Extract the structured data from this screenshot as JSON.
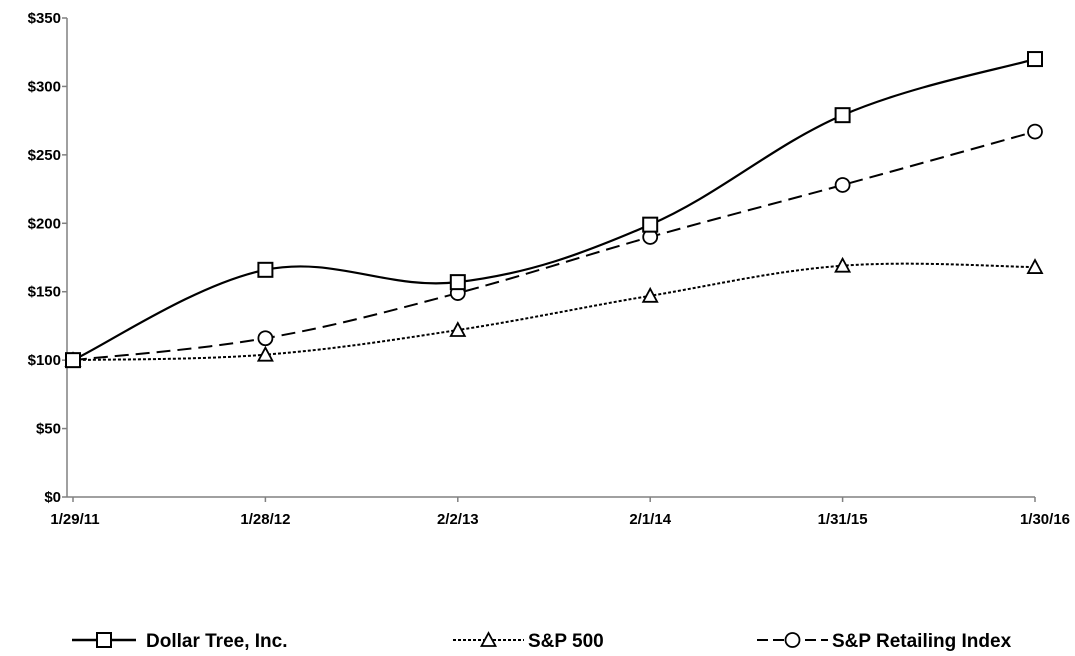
{
  "chart_data": {
    "type": "line",
    "x": [
      "1/29/11",
      "1/28/12",
      "2/2/13",
      "2/1/14",
      "1/31/15",
      "1/30/16"
    ],
    "ylim": [
      0,
      350
    ],
    "y_ticks": [
      0,
      50,
      100,
      150,
      200,
      250,
      300,
      350
    ],
    "y_tick_labels": [
      "$0",
      "$50",
      "$100",
      "$150",
      "$200",
      "$250",
      "$300",
      "$350"
    ],
    "grid": false,
    "legend_position": "bottom",
    "series": [
      {
        "name": "Dollar Tree, Inc.",
        "values": [
          100,
          166,
          157,
          199,
          279,
          320
        ],
        "line_style": "solid",
        "marker": "square",
        "color": "#000000"
      },
      {
        "name": "S&P 500",
        "values": [
          100,
          104,
          122,
          147,
          169,
          168
        ],
        "line_style": "dotted",
        "marker": "triangle",
        "color": "#000000"
      },
      {
        "name": "S&P Retailing Index",
        "values": [
          100,
          116,
          149,
          190,
          228,
          267
        ],
        "line_style": "dashed",
        "marker": "circle",
        "color": "#000000"
      }
    ]
  }
}
